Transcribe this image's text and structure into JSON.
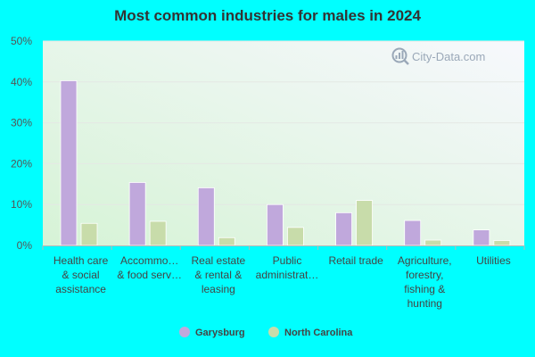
{
  "colors": {
    "page_background": "#00ffff",
    "garysburg": "#c0a8dc",
    "north_carolina": "#c8dcaa",
    "plot_bg_light": "#f7f8fd",
    "plot_bg_green": "#d6f3d6"
  },
  "watermark": {
    "text": "City-Data.com",
    "icon": "magnifier-bars-icon"
  },
  "chart_data": {
    "type": "bar",
    "title": "Most common industries for males in 2024",
    "xlabel": "",
    "ylabel": "",
    "ylim": [
      0,
      50
    ],
    "yticks": [
      0,
      10,
      20,
      30,
      40,
      50
    ],
    "ytick_labels": [
      "0%",
      "10%",
      "20%",
      "30%",
      "40%",
      "50%"
    ],
    "grid": true,
    "legend_position": "bottom-center",
    "categories": [
      [
        "Health care",
        "& social",
        "assistance"
      ],
      [
        "Accommo…",
        "& food serv…"
      ],
      [
        "Real estate",
        "& rental &",
        "leasing"
      ],
      [
        "Public",
        "administrat…"
      ],
      [
        "Retail trade"
      ],
      [
        "Agriculture,",
        "forestry,",
        "fishing &",
        "hunting"
      ],
      [
        "Utilities"
      ]
    ],
    "series": [
      {
        "name": "Garysburg",
        "color": "#c0a8dc",
        "values": [
          40.3,
          15.4,
          14.1,
          10.0,
          8.0,
          6.1,
          3.8
        ]
      },
      {
        "name": "North Carolina",
        "color": "#c8dcaa",
        "values": [
          5.4,
          5.9,
          1.9,
          4.4,
          11.0,
          1.3,
          1.2
        ]
      }
    ]
  }
}
